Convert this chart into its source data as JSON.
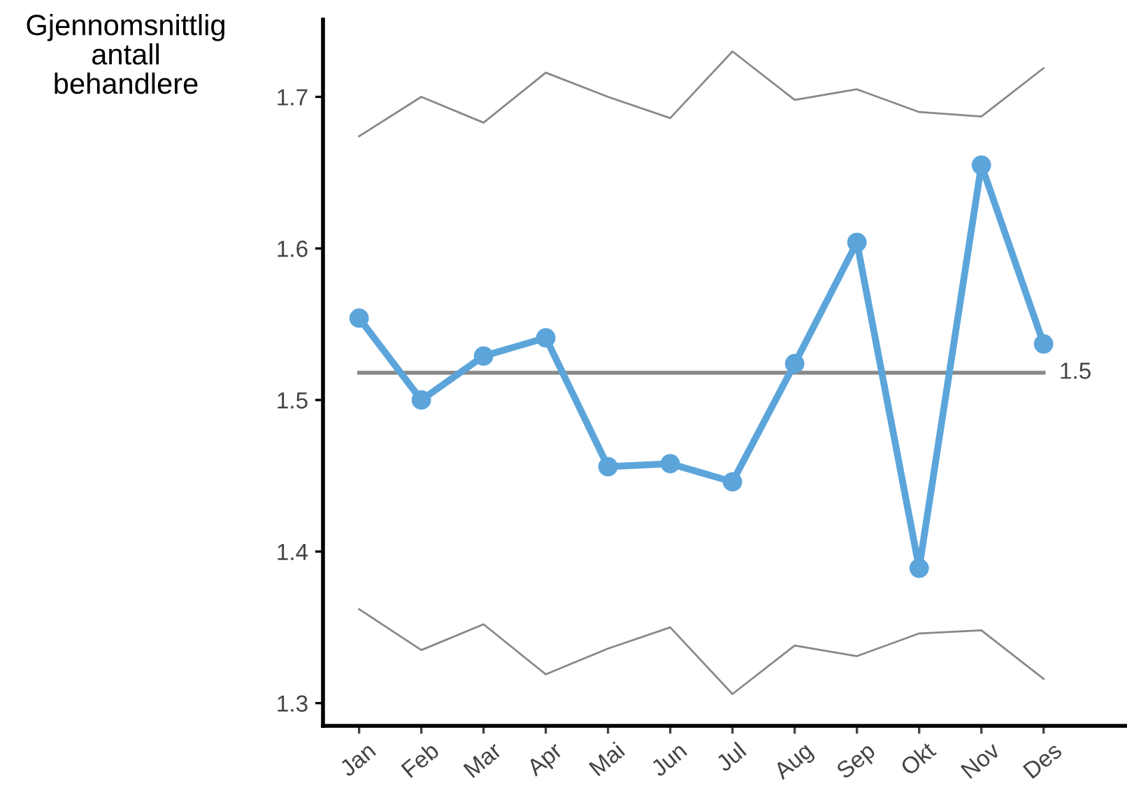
{
  "chart_data": {
    "type": "line",
    "ylabel": "Gjennomsnittlig\nantall\nbehandlere",
    "categories": [
      "Jan",
      "Feb",
      "Mar",
      "Apr",
      "Mai",
      "Jun",
      "Jul",
      "Aug",
      "Sep",
      "Okt",
      "Nov",
      "Des"
    ],
    "series": [
      {
        "color": "#888888",
        "marker": "none",
        "values": [
          1.674,
          1.7,
          1.683,
          1.716,
          1.7,
          1.686,
          1.73,
          1.698,
          1.705,
          1.69,
          1.687,
          1.719
        ]
      },
      {
        "color": "#888888",
        "marker": "none",
        "values": [
          1.362,
          1.335,
          1.352,
          1.319,
          1.336,
          1.35,
          1.306,
          1.338,
          1.331,
          1.346,
          1.348,
          1.316
        ]
      },
      {
        "color": "#5ca5db",
        "marker": "circle",
        "values": [
          1.554,
          1.5,
          1.529,
          1.541,
          1.456,
          1.458,
          1.446,
          1.524,
          1.604,
          1.389,
          1.655,
          1.537
        ]
      }
    ],
    "ref_lines": [
      {
        "axis": "y",
        "value": 1.518,
        "label": "1.5",
        "color": "#888888"
      }
    ],
    "ylim": [
      1.285,
      1.751
    ],
    "yticks": [
      1.3,
      1.4,
      1.5,
      1.6,
      1.7
    ],
    "grid": false
  }
}
